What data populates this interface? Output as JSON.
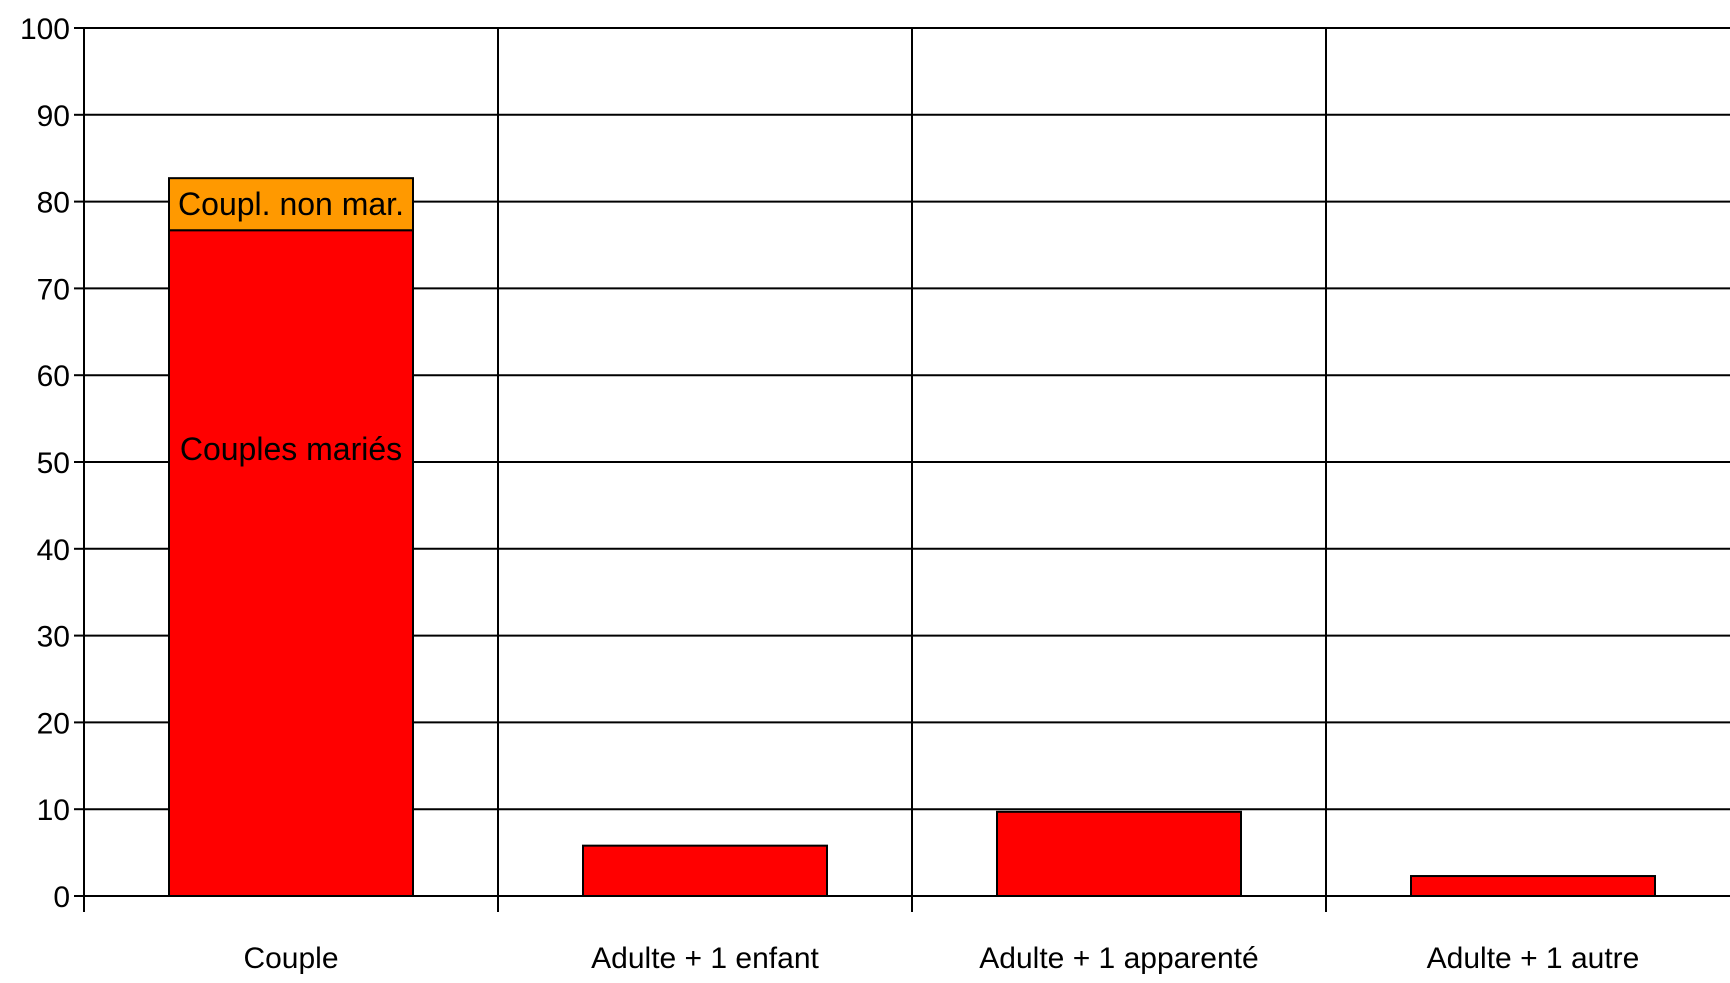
{
  "chart_data": {
    "type": "bar",
    "stacked": true,
    "title": "",
    "xlabel": "",
    "ylabel": "",
    "ylim": [
      0,
      100
    ],
    "yticks": [
      0,
      10,
      20,
      30,
      40,
      50,
      60,
      70,
      80,
      90,
      100
    ],
    "grid": true,
    "categories": [
      "Couple",
      "Adulte + 1 enfant",
      "Adulte + 1 apparenté",
      "Adulte + 1 autre"
    ],
    "series": [
      {
        "name": "Couples mariés",
        "values": [
          76.7,
          5.8,
          9.7,
          2.3
        ],
        "color": "#ff0000"
      },
      {
        "name": "Coupl. non mar.",
        "values": [
          6.0,
          0,
          0,
          0
        ],
        "color": "#ff9900"
      }
    ],
    "segment_labels": [
      {
        "text": "Couples mariés",
        "category": 0,
        "series": 0
      },
      {
        "text": "Coupl. non mar.",
        "category": 0,
        "series": 1
      }
    ]
  }
}
